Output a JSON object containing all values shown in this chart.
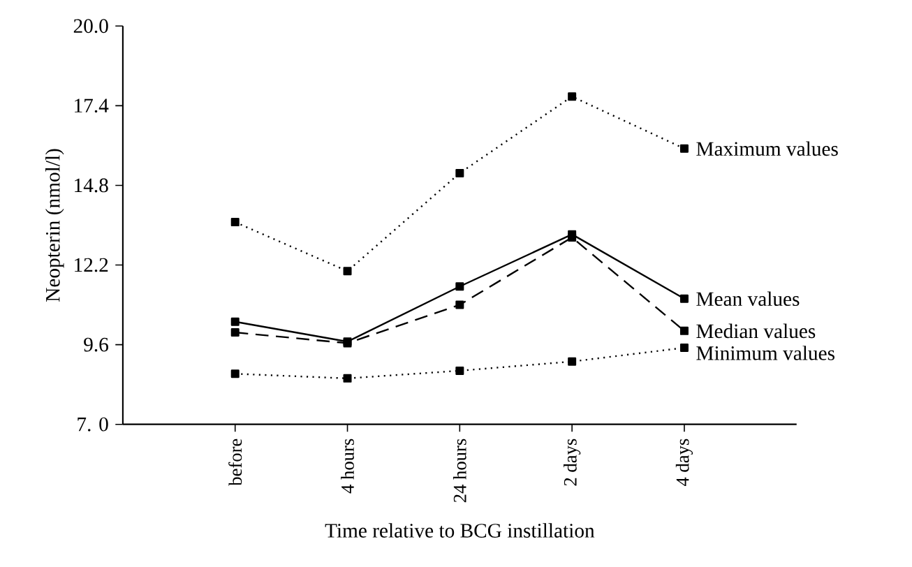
{
  "chart_data": {
    "type": "line",
    "xlabel": "Time relative to BCG instillation",
    "ylabel": "Neopterin (nmol/l)",
    "categories": [
      "before",
      "4 hours",
      "24 hours",
      "2 days",
      "4 days"
    ],
    "ylim": [
      7.0,
      20.0
    ],
    "yticks": [
      {
        "value": 7.0,
        "label": "7. 0"
      },
      {
        "value": 9.6,
        "label": "9.6"
      },
      {
        "value": 12.2,
        "label": "12.2"
      },
      {
        "value": 14.8,
        "label": "14.8"
      },
      {
        "value": 17.4,
        "label": "17.4"
      },
      {
        "value": 20.0,
        "label": "20.0"
      }
    ],
    "marker": "square",
    "grid": false,
    "series": [
      {
        "name": "Maximum values",
        "color": "#000000",
        "line_style": "dotted",
        "values": [
          13.6,
          12.0,
          15.2,
          17.7,
          16.0
        ]
      },
      {
        "name": "Mean values",
        "color": "#000000",
        "line_style": "solid",
        "values": [
          10.35,
          9.7,
          11.5,
          13.2,
          11.1
        ]
      },
      {
        "name": "Median values",
        "color": "#000000",
        "line_style": "dashed",
        "values": [
          10.0,
          9.65,
          10.9,
          13.1,
          10.05
        ]
      },
      {
        "name": "Minimum values",
        "color": "#000000",
        "line_style": "dotted",
        "values": [
          8.65,
          8.5,
          8.75,
          9.05,
          9.5
        ]
      }
    ]
  }
}
